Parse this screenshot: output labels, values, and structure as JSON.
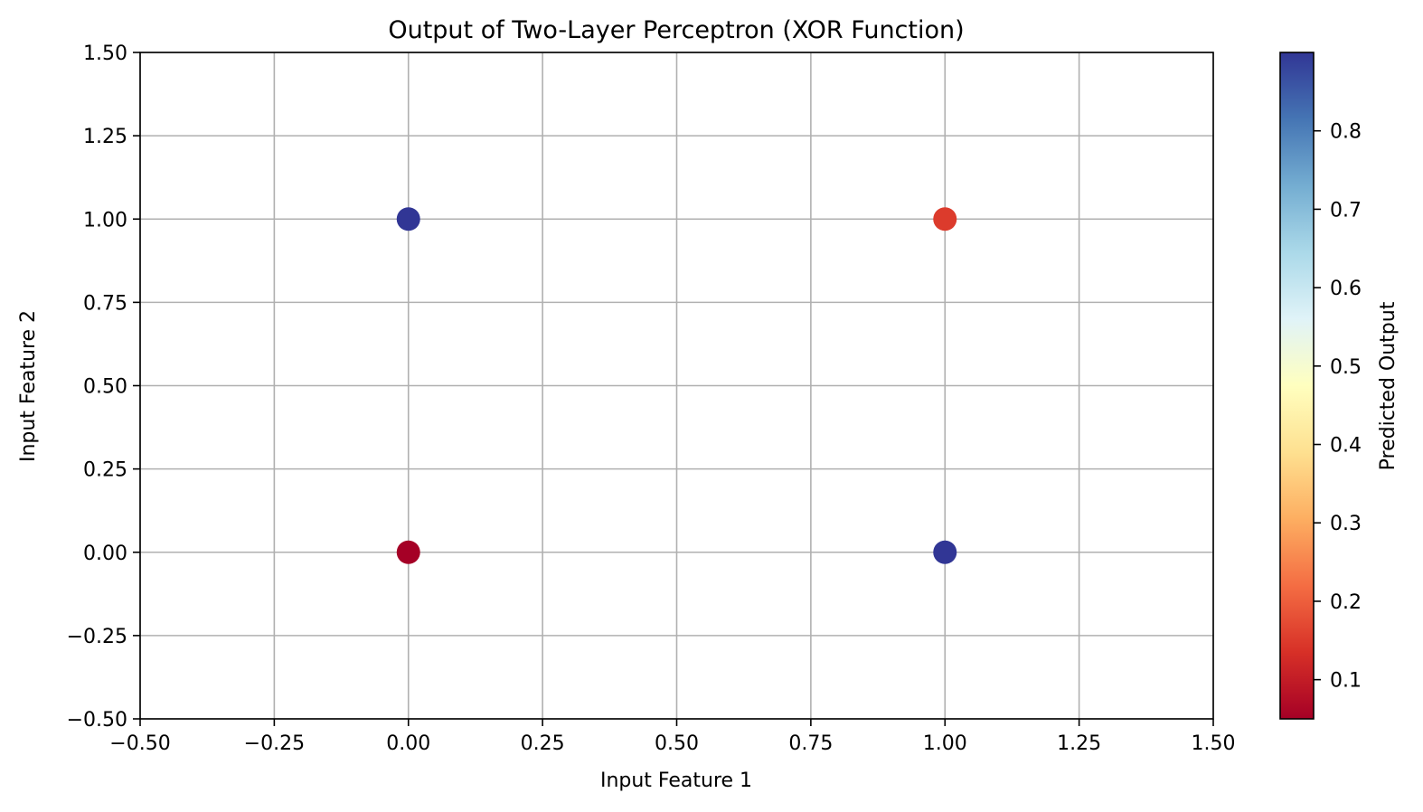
{
  "chart_data": {
    "type": "scatter",
    "title": "Output of Two-Layer Perceptron (XOR Function)",
    "xlabel": "Input Feature 1",
    "ylabel": "Input Feature 2",
    "xlim": [
      -0.5,
      1.5
    ],
    "ylim": [
      -0.5,
      1.5
    ],
    "xticks": [
      -0.5,
      -0.25,
      0.0,
      0.25,
      0.5,
      0.75,
      1.0,
      1.25,
      1.5
    ],
    "yticks": [
      -0.5,
      -0.25,
      0.0,
      0.25,
      0.5,
      0.75,
      1.0,
      1.25,
      1.5
    ],
    "xtick_labels": [
      "−0.50",
      "−0.25",
      "0.00",
      "0.25",
      "0.50",
      "0.75",
      "1.00",
      "1.25",
      "1.50"
    ],
    "ytick_labels": [
      "−0.50",
      "−0.25",
      "0.00",
      "0.25",
      "0.50",
      "0.75",
      "1.00",
      "1.25",
      "1.50"
    ],
    "grid": true,
    "points": [
      {
        "x": 0,
        "y": 0,
        "value": 0.05
      },
      {
        "x": 0,
        "y": 1,
        "value": 0.9
      },
      {
        "x": 1,
        "y": 0,
        "value": 0.9
      },
      {
        "x": 1,
        "y": 1,
        "value": 0.15
      }
    ],
    "colormap": "RdYlBu",
    "colorbar": {
      "label": "Predicted Output",
      "range": [
        0.05,
        0.9
      ],
      "ticks": [
        0.1,
        0.2,
        0.3,
        0.4,
        0.5,
        0.6,
        0.7,
        0.8
      ],
      "tick_labels": [
        "0.1",
        "0.2",
        "0.3",
        "0.4",
        "0.5",
        "0.6",
        "0.7",
        "0.8"
      ]
    },
    "colors": {
      "grid": "#b0b0b0",
      "axis": "#000000"
    }
  }
}
